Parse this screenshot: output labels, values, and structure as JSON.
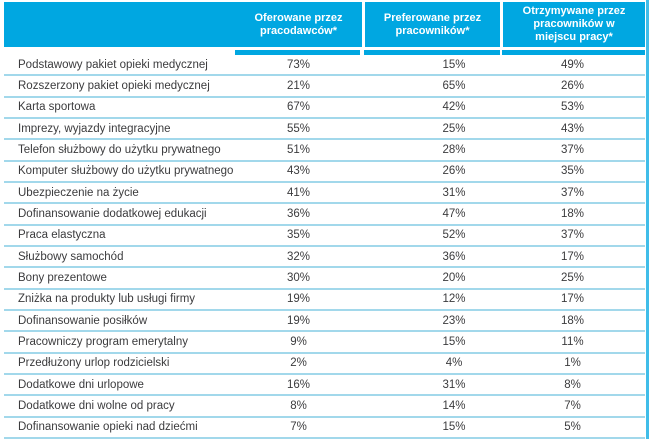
{
  "colors": {
    "accent_cyan": "#00a7e1",
    "row_divider": "#a2d8eb",
    "body_text": "#3b3b3d",
    "header_text": "#ffffff"
  },
  "table": {
    "benefit_column_header": "",
    "columns": [
      {
        "key": "offered",
        "label": "Oferowane przez pracodawców*"
      },
      {
        "key": "preferred",
        "label": "Preferowane przez pracowników*"
      },
      {
        "key": "received",
        "label": "Otrzymywane przez pracowników w miejscu pracy*"
      }
    ],
    "rows": [
      {
        "label": "Podstawowy pakiet opieki medycznej",
        "values": [
          "73%",
          "15%",
          "49%"
        ]
      },
      {
        "label": "Rozszerzony pakiet opieki medycznej",
        "values": [
          "21%",
          "65%",
          "26%"
        ]
      },
      {
        "label": "Karta sportowa",
        "values": [
          "67%",
          "42%",
          "53%"
        ]
      },
      {
        "label": "Imprezy, wyjazdy integracyjne",
        "values": [
          "55%",
          "25%",
          "43%"
        ]
      },
      {
        "label": "Telefon służbowy do użytku prywatnego",
        "values": [
          "51%",
          "28%",
          "37%"
        ]
      },
      {
        "label": "Komputer służbowy do użytku prywatnego",
        "values": [
          "43%",
          "26%",
          "35%"
        ]
      },
      {
        "label": "Ubezpieczenie na życie",
        "values": [
          "41%",
          "31%",
          "37%"
        ]
      },
      {
        "label": "Dofinansowanie dodatkowej edukacji",
        "values": [
          "36%",
          "47%",
          "18%"
        ]
      },
      {
        "label": "Praca elastyczna",
        "values": [
          "35%",
          "52%",
          "37%"
        ]
      },
      {
        "label": "Służbowy samochód",
        "values": [
          "32%",
          "36%",
          "17%"
        ]
      },
      {
        "label": "Bony prezentowe",
        "values": [
          "30%",
          "20%",
          "25%"
        ]
      },
      {
        "label": "Zniżka na produkty lub usługi firmy",
        "values": [
          "19%",
          "12%",
          "17%"
        ]
      },
      {
        "label": "Dofinansowanie posiłków",
        "values": [
          "19%",
          "23%",
          "18%"
        ]
      },
      {
        "label": "Pracowniczy program emerytalny",
        "values": [
          "9%",
          "15%",
          "11%"
        ]
      },
      {
        "label": "Przedłużony urlop rodzicielski",
        "values": [
          "2%",
          "4%",
          "1%"
        ]
      },
      {
        "label": "Dodatkowe dni urlopowe",
        "values": [
          "16%",
          "31%",
          "8%"
        ]
      },
      {
        "label": "Dodatkowe dni wolne od pracy",
        "values": [
          "8%",
          "14%",
          "7%"
        ]
      },
      {
        "label": "Dofinansowanie opieki nad dziećmi",
        "values": [
          "7%",
          "15%",
          "5%"
        ]
      }
    ]
  },
  "chart_data": {
    "type": "table",
    "title": "",
    "columns": [
      "Oferowane przez pracodawców*",
      "Preferowane przez pracowników*",
      "Otrzymywane przez pracowników w miejscu pracy*"
    ],
    "categories": [
      "Podstawowy pakiet opieki medycznej",
      "Rozszerzony pakiet opieki medycznej",
      "Karta sportowa",
      "Imprezy, wyjazdy integracyjne",
      "Telefon służbowy do użytku prywatnego",
      "Komputer służbowy do użytku prywatnego",
      "Ubezpieczenie na życie",
      "Dofinansowanie dodatkowej edukacji",
      "Praca elastyczna",
      "Służbowy samochód",
      "Bony prezentowe",
      "Zniżka na produkty lub usługi firmy",
      "Dofinansowanie posiłków",
      "Pracowniczy program emerytalny",
      "Przedłużony urlop rodzicielski",
      "Dodatkowe dni urlopowe",
      "Dodatkowe dni wolne od pracy",
      "Dofinansowanie opieki nad dziećmi"
    ],
    "series": [
      {
        "name": "Oferowane przez pracodawców",
        "unit": "%",
        "values": [
          73,
          21,
          67,
          55,
          51,
          43,
          41,
          36,
          35,
          32,
          30,
          19,
          19,
          9,
          2,
          16,
          8,
          7
        ]
      },
      {
        "name": "Preferowane przez pracowników",
        "unit": "%",
        "values": [
          15,
          65,
          42,
          25,
          28,
          26,
          31,
          47,
          52,
          36,
          20,
          12,
          23,
          15,
          4,
          31,
          14,
          15
        ]
      },
      {
        "name": "Otrzymywane przez pracowników w miejscu pracy",
        "unit": "%",
        "values": [
          49,
          26,
          53,
          43,
          37,
          35,
          37,
          18,
          37,
          17,
          25,
          17,
          18,
          11,
          1,
          8,
          7,
          5
        ]
      }
    ]
  }
}
